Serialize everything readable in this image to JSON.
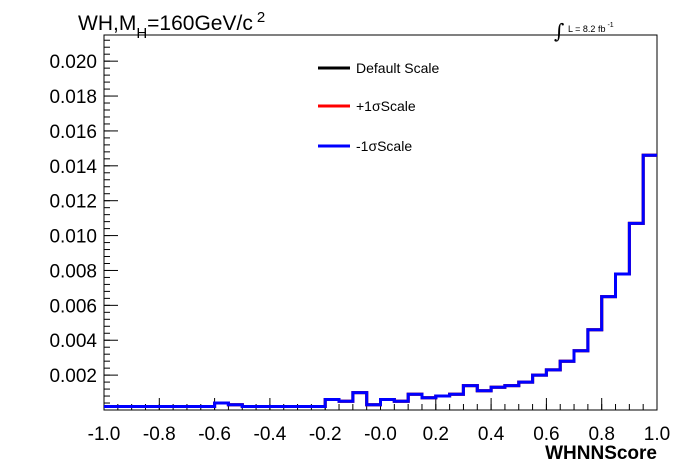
{
  "chart_data": {
    "type": "line",
    "title_main": "WH,M",
    "title_sub": "H",
    "title_value": "=160GeV/c",
    "title_sup": "2",
    "lumi_label": "L = 8.2 fb",
    "lumi_sup": "-1",
    "xlabel": "WHNNScore",
    "ylabel": "",
    "xlim": [
      -1.0,
      1.0
    ],
    "ylim": [
      0.0,
      0.0215
    ],
    "x_ticks": [
      "-1.0",
      "-0.8",
      "-0.6",
      "-0.4",
      "-0.2",
      "-0.0",
      "0.2",
      "0.4",
      "0.6",
      "0.8",
      "1.0"
    ],
    "x_tick_values": [
      -1.0,
      -0.8,
      -0.6,
      -0.4,
      -0.2,
      0.0,
      0.2,
      0.4,
      0.6,
      0.8,
      1.0
    ],
    "y_ticks": [
      "0.002",
      "0.004",
      "0.006",
      "0.008",
      "0.010",
      "0.012",
      "0.014",
      "0.016",
      "0.018",
      "0.020"
    ],
    "y_tick_values": [
      0.002,
      0.004,
      0.006,
      0.008,
      0.01,
      0.012,
      0.014,
      0.016,
      0.018,
      0.02
    ],
    "bin_edges": [
      -1.0,
      -0.95,
      -0.9,
      -0.85,
      -0.8,
      -0.75,
      -0.7,
      -0.65,
      -0.6,
      -0.55,
      -0.5,
      -0.45,
      -0.4,
      -0.35,
      -0.3,
      -0.25,
      -0.2,
      -0.15,
      -0.1,
      -0.05,
      0.0,
      0.05,
      0.1,
      0.15,
      0.2,
      0.25,
      0.3,
      0.35,
      0.4,
      0.45,
      0.5,
      0.55,
      0.6,
      0.65,
      0.7,
      0.75,
      0.8,
      0.85,
      0.9,
      0.95,
      1.0
    ],
    "series": [
      {
        "name": "Default Scale",
        "color": "#000000",
        "values": [
          0.0002,
          0.0002,
          0.0002,
          0.0002,
          0.0002,
          0.0002,
          0.0002,
          0.0002,
          0.0004,
          0.0003,
          0.0002,
          0.0002,
          0.0002,
          0.0002,
          0.0002,
          0.0002,
          0.0006,
          0.0005,
          0.001,
          0.0003,
          0.0006,
          0.0005,
          0.0009,
          0.0007,
          0.0008,
          0.0009,
          0.0014,
          0.0011,
          0.0013,
          0.0014,
          0.0016,
          0.002,
          0.0023,
          0.0028,
          0.0034,
          0.0046,
          0.0065,
          0.0078,
          0.0107,
          0.0146
        ]
      },
      {
        "name": "+1σScale",
        "color": "#ff0000",
        "values": [
          0.0002,
          0.0002,
          0.0002,
          0.0002,
          0.0002,
          0.0002,
          0.0002,
          0.0002,
          0.0004,
          0.0003,
          0.0002,
          0.0002,
          0.0002,
          0.0002,
          0.0002,
          0.0002,
          0.0006,
          0.0005,
          0.001,
          0.0003,
          0.0006,
          0.0005,
          0.0009,
          0.0007,
          0.0008,
          0.0009,
          0.0014,
          0.0011,
          0.0013,
          0.0014,
          0.0016,
          0.002,
          0.0023,
          0.0028,
          0.0034,
          0.0046,
          0.0065,
          0.0078,
          0.0107,
          0.0146
        ]
      },
      {
        "name": "-1σScale",
        "color": "#0000ff",
        "values": [
          0.0002,
          0.0002,
          0.0002,
          0.0002,
          0.0002,
          0.0002,
          0.0002,
          0.0002,
          0.0004,
          0.0003,
          0.0002,
          0.0002,
          0.0002,
          0.0002,
          0.0002,
          0.0002,
          0.0006,
          0.0005,
          0.001,
          0.0003,
          0.0006,
          0.0005,
          0.0009,
          0.0007,
          0.0008,
          0.0009,
          0.0014,
          0.0011,
          0.0013,
          0.0014,
          0.0016,
          0.002,
          0.0023,
          0.0028,
          0.0034,
          0.0046,
          0.0065,
          0.0078,
          0.0107,
          0.0146
        ]
      }
    ],
    "grid": false,
    "legend_position": "top-center"
  }
}
